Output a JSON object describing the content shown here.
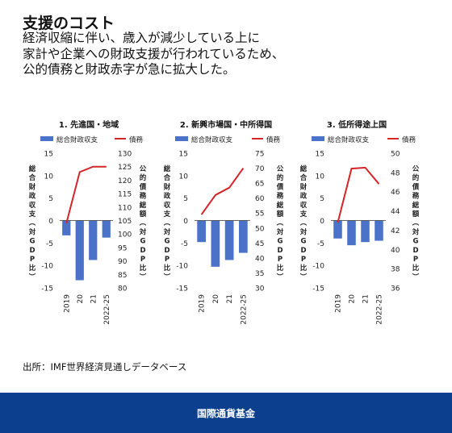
{
  "header": {
    "title": "支援のコスト",
    "subtitle_lines": [
      "経済収縮に伴い、歳入が減少している上に",
      "家計や企業への財政支援が行われているため、",
      "公的債務と財政赤字が急に拡大した。"
    ]
  },
  "legend": {
    "bar_label": "総合財政収支",
    "line_label": "債務"
  },
  "axis_labels": {
    "left": "総合財政収支（対GDP比）",
    "right": "公的債務総額（対GDP比）"
  },
  "colors": {
    "bar": "#4a72c8",
    "line": "#d3252a",
    "footer": "#0d3f8f"
  },
  "chart_data": [
    {
      "type": "bar+line",
      "title": "1. 先進国・地域",
      "categories": [
        "2019",
        "20",
        "21",
        "2022-25"
      ],
      "series": [
        {
          "name": "総合財政収支",
          "kind": "bar",
          "axis": "left",
          "values": [
            -3.3,
            -13.3,
            -8.8,
            -3.8
          ]
        },
        {
          "name": "債務",
          "kind": "line",
          "axis": "right",
          "values": [
            104,
            123,
            125,
            125
          ]
        }
      ],
      "left_axis": {
        "ylim": [
          -15,
          15
        ],
        "ticks": [
          -15,
          -10,
          -5,
          0,
          5,
          10,
          15
        ]
      },
      "right_axis": {
        "ylim": [
          80,
          130
        ],
        "ticks": [
          80,
          85,
          90,
          95,
          100,
          105,
          110,
          115,
          120,
          125,
          130
        ]
      }
    },
    {
      "type": "bar+line",
      "title": "2. 新興市場国・中所得国",
      "categories": [
        "2019",
        "20",
        "21",
        "2022-25"
      ],
      "series": [
        {
          "name": "総合財政収支",
          "kind": "bar",
          "axis": "left",
          "values": [
            -4.8,
            -10.3,
            -8.8,
            -7.2
          ]
        },
        {
          "name": "債務",
          "kind": "line",
          "axis": "right",
          "values": [
            54.5,
            61,
            63.5,
            70
          ]
        }
      ],
      "left_axis": {
        "ylim": [
          -15,
          15
        ],
        "ticks": [
          -15,
          -10,
          -5,
          0,
          5,
          10,
          15
        ]
      },
      "right_axis": {
        "ylim": [
          30,
          75
        ],
        "ticks": [
          30,
          35,
          40,
          45,
          50,
          55,
          60,
          65,
          70,
          75
        ]
      }
    },
    {
      "type": "bar+line",
      "title": "3. 低所得途上国",
      "categories": [
        "2019",
        "20",
        "21",
        "2022-25"
      ],
      "series": [
        {
          "name": "総合財政収支",
          "kind": "bar",
          "axis": "left",
          "values": [
            -4,
            -5.5,
            -4.8,
            -4.5
          ]
        },
        {
          "name": "債務",
          "kind": "line",
          "axis": "right",
          "values": [
            42.8,
            48.4,
            48.5,
            46.8
          ]
        }
      ],
      "left_axis": {
        "ylim": [
          -15,
          15
        ],
        "ticks": [
          -15,
          -10,
          -5,
          0,
          5,
          10,
          15
        ]
      },
      "right_axis": {
        "ylim": [
          36,
          50
        ],
        "ticks": [
          36,
          38,
          40,
          42,
          44,
          46,
          48,
          50
        ]
      }
    }
  ],
  "source": "出所：IMF世界経済見通しデータベース",
  "footer": {
    "org": "国際通貨基金"
  }
}
